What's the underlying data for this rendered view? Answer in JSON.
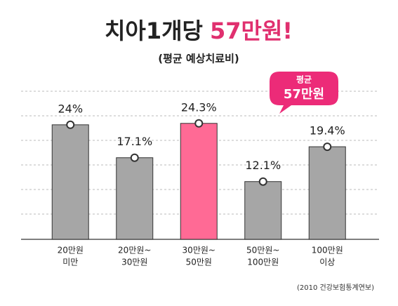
{
  "chart_data": {
    "type": "bar",
    "title": "치아1개당",
    "title_highlight": "57만원!",
    "subtitle": "(평균 예상치료비)",
    "annotation": [
      "평균",
      "57만원"
    ],
    "source": "(2010 건강보험통계연보)",
    "categories": [
      [
        "20만원",
        "미만"
      ],
      [
        "20만원~",
        "30만원"
      ],
      [
        "30만원~",
        "50만원"
      ],
      [
        "50만원~",
        "100만원"
      ],
      [
        "100만원",
        "이상"
      ]
    ],
    "values": [
      24,
      17.1,
      24.3,
      12.1,
      19.4
    ],
    "value_labels": [
      "24%",
      "17.1%",
      "24.3%",
      "12.1%",
      "19.4%"
    ],
    "colors": [
      "#a6a6a6",
      "#a6a6a6",
      "#ff6a95",
      "#a6a6a6",
      "#a6a6a6"
    ],
    "ylim": [
      0,
      30
    ]
  }
}
